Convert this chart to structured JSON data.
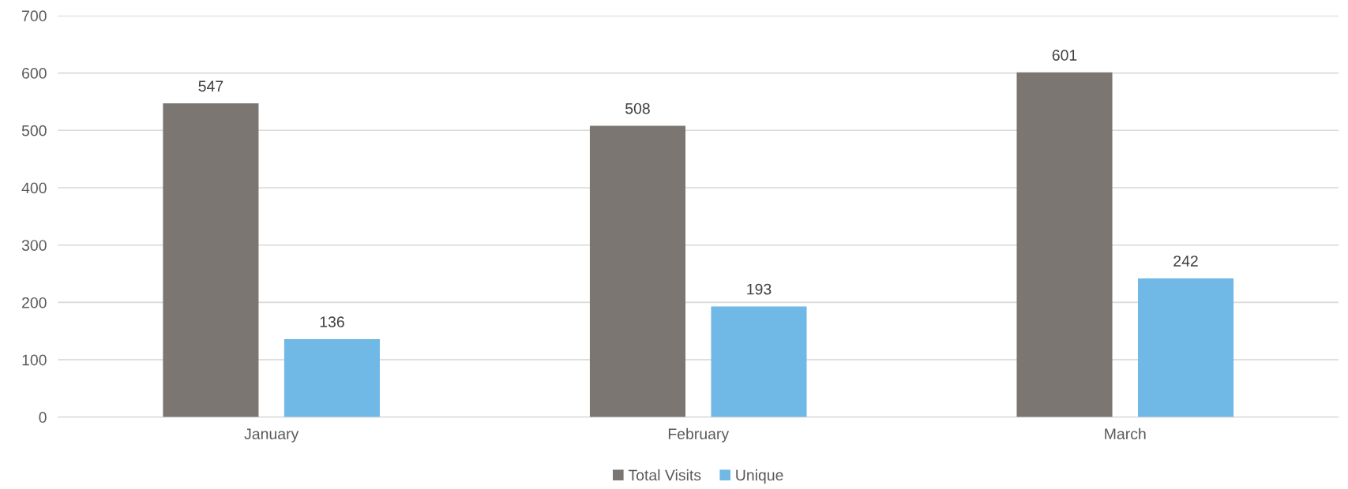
{
  "chart_data": {
    "type": "bar",
    "categories": [
      "January",
      "February",
      "March"
    ],
    "series": [
      {
        "name": "Total Visits",
        "color": "#7b7672",
        "values": [
          547,
          508,
          601
        ]
      },
      {
        "name": "Unique",
        "color": "#70b9e6",
        "values": [
          136,
          193,
          242
        ]
      }
    ],
    "ylim": [
      0,
      700
    ],
    "yticks": [
      0,
      100,
      200,
      300,
      400,
      500,
      600,
      700
    ],
    "grid": "y",
    "legend": "bottom",
    "data_labels": true
  }
}
